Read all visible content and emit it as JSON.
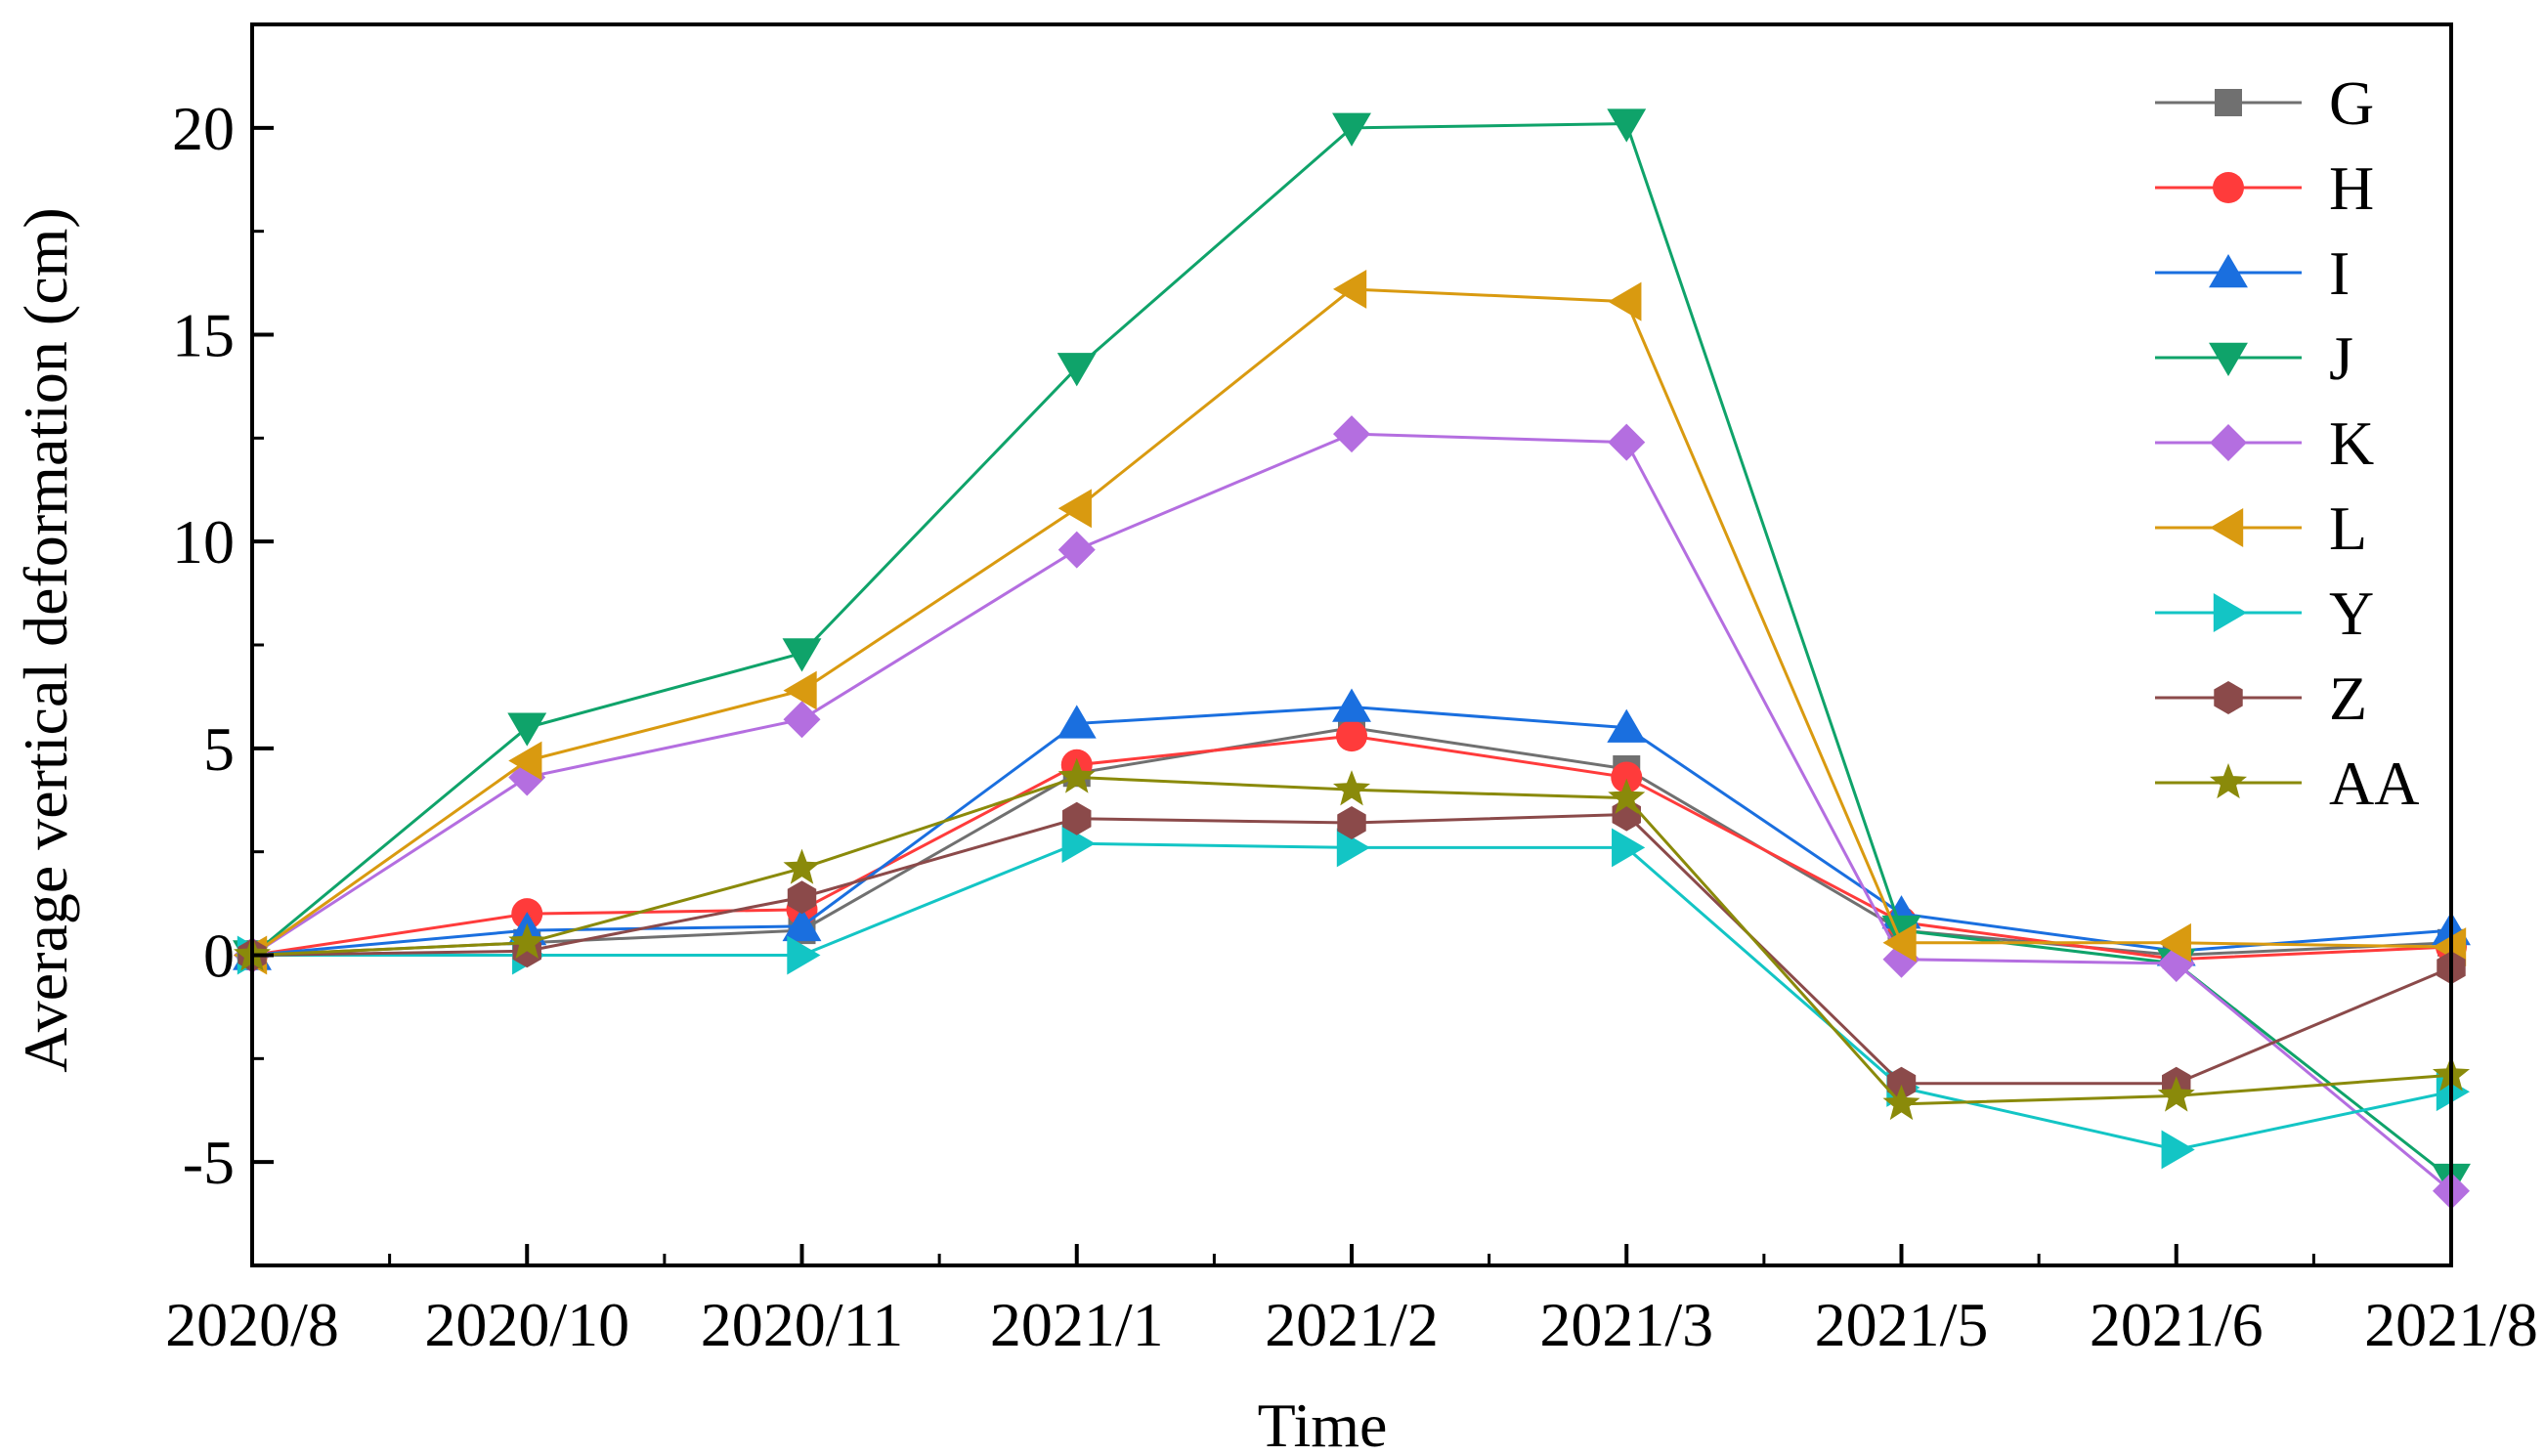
{
  "chart_data": {
    "type": "line",
    "title": "",
    "xlabel": "Time",
    "ylabel": "Average vertical deformation (cm)",
    "categories": [
      "2020/8",
      "2020/10",
      "2020/11",
      "2021/1",
      "2021/2",
      "2021/3",
      "2021/5",
      "2021/6",
      "2021/8"
    ],
    "ylim": [
      -7.5,
      22.5
    ],
    "yticks": [
      -5,
      0,
      5,
      10,
      15,
      20
    ],
    "grid": false,
    "legend_position": "top-right",
    "series": [
      {
        "name": "G",
        "color": "#707070",
        "marker": "square",
        "values": [
          0.0,
          0.3,
          0.6,
          4.4,
          5.5,
          4.5,
          0.6,
          0.0,
          0.3
        ]
      },
      {
        "name": "H",
        "color": "#ff3b3b",
        "marker": "circle",
        "values": [
          0.0,
          1.0,
          1.1,
          4.6,
          5.3,
          4.3,
          0.8,
          -0.1,
          0.2
        ]
      },
      {
        "name": "I",
        "color": "#1a6fdf",
        "marker": "triangle-up",
        "values": [
          0.0,
          0.6,
          0.7,
          5.6,
          6.0,
          5.5,
          1.0,
          0.1,
          0.6
        ]
      },
      {
        "name": "J",
        "color": "#0fa36a",
        "marker": "triangle-down",
        "values": [
          0.0,
          5.5,
          7.3,
          14.2,
          20.0,
          20.1,
          0.6,
          -0.2,
          -5.4
        ]
      },
      {
        "name": "K",
        "color": "#b46ee0",
        "marker": "diamond",
        "values": [
          0.0,
          4.3,
          5.7,
          9.8,
          12.6,
          12.4,
          -0.1,
          -0.2,
          -5.7
        ]
      },
      {
        "name": "L",
        "color": "#d99a10",
        "marker": "triangle-left",
        "values": [
          0.0,
          4.7,
          6.4,
          10.8,
          16.1,
          15.8,
          0.3,
          0.3,
          0.2
        ]
      },
      {
        "name": "Y",
        "color": "#13c5c5",
        "marker": "triangle-right",
        "values": [
          0.0,
          0.0,
          0.0,
          2.7,
          2.6,
          2.6,
          -3.2,
          -4.7,
          -3.3
        ]
      },
      {
        "name": "Z",
        "color": "#8b4a4a",
        "marker": "hexagon",
        "values": [
          0.0,
          0.1,
          1.4,
          3.3,
          3.2,
          3.4,
          -3.1,
          -3.1,
          -0.3
        ]
      },
      {
        "name": "AA",
        "color": "#8a8a0a",
        "marker": "star",
        "values": [
          0.0,
          0.3,
          2.1,
          4.3,
          4.0,
          3.8,
          -3.6,
          -3.4,
          -2.9
        ]
      }
    ]
  }
}
